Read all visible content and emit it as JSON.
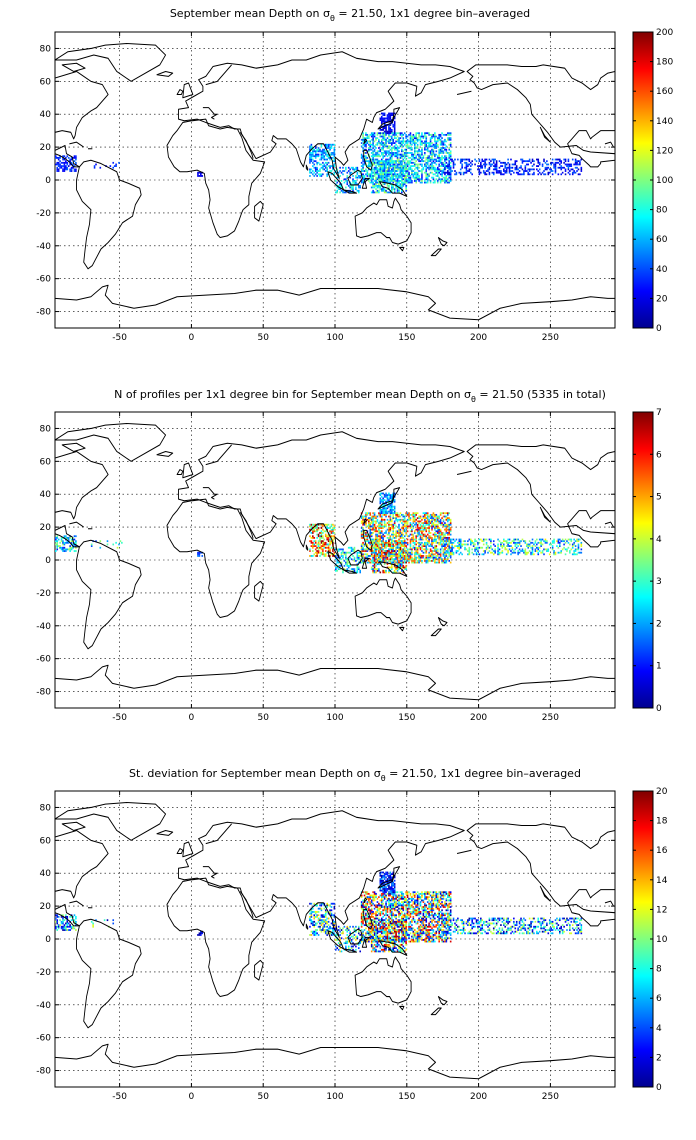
{
  "colors": {
    "colormap": "jet",
    "jet_stops": [
      "#00008f",
      "#0000ff",
      "#00ffff",
      "#ffff00",
      "#ff0000",
      "#800000"
    ],
    "coast": "#000000",
    "background": "#ffffff"
  },
  "map": {
    "x_ticks": [
      "-50",
      "0",
      "50",
      "100",
      "150",
      "200",
      "250"
    ],
    "y_ticks": [
      "80",
      "60",
      "40",
      "20",
      "0",
      "-20",
      "-40",
      "-60",
      "-80"
    ],
    "xlim": [
      -95,
      295
    ],
    "ylim": [
      -90,
      90
    ],
    "grid": true
  },
  "chart_data": [
    {
      "type": "heatmap",
      "title_pre": "September mean Depth on σ",
      "title_sub": "θ",
      "title_post": " = 21.50, 1x1 degree bin–averaged",
      "colorbar_ticks": [
        "200",
        "180",
        "160",
        "140",
        "120",
        "100",
        "80",
        "60",
        "40",
        "20",
        "0"
      ],
      "clim": [
        0,
        200
      ],
      "seed": 11,
      "regions": [
        {
          "lon": [
            118,
            181
          ],
          "lat": [
            -2,
            29
          ],
          "density": 0.62,
          "values": [
            25,
            105
          ]
        },
        {
          "lon": [
            125,
            150
          ],
          "lat": [
            -8,
            12
          ],
          "density": 0.55,
          "values": [
            30,
            110
          ]
        },
        {
          "lon": [
            131,
            142
          ],
          "lat": [
            28,
            41
          ],
          "density": 0.7,
          "values": [
            10,
            35
          ]
        },
        {
          "lon": [
            82,
            100
          ],
          "lat": [
            2,
            22
          ],
          "density": 0.55,
          "values": [
            30,
            90
          ]
        },
        {
          "lon": [
            100,
            118
          ],
          "lat": [
            -8,
            8
          ],
          "density": 0.4,
          "values": [
            30,
            95
          ]
        },
        {
          "lon": [
            175,
            272
          ],
          "lat": [
            3,
            13
          ],
          "density": 0.42,
          "values": [
            10,
            50
          ]
        },
        {
          "lon": [
            -95,
            -80
          ],
          "lat": [
            5,
            15
          ],
          "density": 0.55,
          "values": [
            15,
            45
          ]
        },
        {
          "lon": [
            -72,
            -48
          ],
          "lat": [
            7,
            12
          ],
          "density": 0.08,
          "values": [
            15,
            45
          ]
        },
        {
          "lon": [
            4,
            8
          ],
          "lat": [
            2,
            5
          ],
          "density": 0.9,
          "values": [
            10,
            25
          ]
        }
      ]
    },
    {
      "type": "heatmap",
      "title_pre": "N of profiles per 1x1 degree bin for September mean Depth on σ",
      "title_sub": "θ",
      "title_post": " = 21.50 (5335 in total)",
      "colorbar_ticks": [
        "7",
        "6",
        "5",
        "4",
        "3",
        "2",
        "1",
        "0"
      ],
      "clim": [
        0,
        7
      ],
      "seed": 23,
      "regions": [
        {
          "lon": [
            118,
            181
          ],
          "lat": [
            -2,
            29
          ],
          "density": 0.62,
          "values": [
            1,
            6.5
          ]
        },
        {
          "lon": [
            125,
            150
          ],
          "lat": [
            -8,
            12
          ],
          "density": 0.55,
          "values": [
            1,
            7
          ]
        },
        {
          "lon": [
            131,
            142
          ],
          "lat": [
            28,
            41
          ],
          "density": 0.7,
          "values": [
            1,
            3
          ]
        },
        {
          "lon": [
            82,
            100
          ],
          "lat": [
            2,
            22
          ],
          "density": 0.55,
          "values": [
            2,
            7
          ]
        },
        {
          "lon": [
            100,
            118
          ],
          "lat": [
            -8,
            8
          ],
          "density": 0.4,
          "values": [
            1,
            4
          ]
        },
        {
          "lon": [
            175,
            272
          ],
          "lat": [
            3,
            13
          ],
          "density": 0.42,
          "values": [
            1,
            4.5
          ]
        },
        {
          "lon": [
            -95,
            -80
          ],
          "lat": [
            5,
            15
          ],
          "density": 0.55,
          "values": [
            1,
            4
          ]
        },
        {
          "lon": [
            -72,
            -48
          ],
          "lat": [
            7,
            12
          ],
          "density": 0.08,
          "values": [
            1,
            4
          ]
        },
        {
          "lon": [
            4,
            8
          ],
          "lat": [
            2,
            5
          ],
          "density": 0.9,
          "values": [
            1,
            2
          ]
        }
      ]
    },
    {
      "type": "heatmap",
      "title_pre": "St. deviation for September mean Depth on σ",
      "title_sub": "θ",
      "title_post": " = 21.50, 1x1 degree bin–averaged",
      "colorbar_ticks": [
        "20",
        "18",
        "16",
        "14",
        "12",
        "10",
        "8",
        "6",
        "4",
        "2",
        "0"
      ],
      "clim": [
        0,
        20
      ],
      "seed": 37,
      "regions": [
        {
          "lon": [
            118,
            181
          ],
          "lat": [
            -2,
            29
          ],
          "density": 0.62,
          "values": [
            0,
            19
          ]
        },
        {
          "lon": [
            125,
            150
          ],
          "lat": [
            -8,
            12
          ],
          "density": 0.55,
          "values": [
            0,
            20
          ]
        },
        {
          "lon": [
            131,
            142
          ],
          "lat": [
            28,
            41
          ],
          "density": 0.7,
          "values": [
            0,
            6
          ]
        },
        {
          "lon": [
            82,
            100
          ],
          "lat": [
            2,
            22
          ],
          "density": 0.55,
          "values": [
            0,
            14
          ]
        },
        {
          "lon": [
            100,
            118
          ],
          "lat": [
            -8,
            8
          ],
          "density": 0.4,
          "values": [
            0,
            14
          ]
        },
        {
          "lon": [
            175,
            272
          ],
          "lat": [
            3,
            13
          ],
          "density": 0.42,
          "values": [
            0,
            12
          ]
        },
        {
          "lon": [
            -95,
            -80
          ],
          "lat": [
            5,
            15
          ],
          "density": 0.55,
          "values": [
            0,
            12
          ]
        },
        {
          "lon": [
            -72,
            -48
          ],
          "lat": [
            7,
            12
          ],
          "density": 0.08,
          "values": [
            0,
            12
          ]
        },
        {
          "lon": [
            4,
            8
          ],
          "lat": [
            2,
            5
          ],
          "density": 0.9,
          "values": [
            0,
            4
          ]
        }
      ]
    }
  ]
}
